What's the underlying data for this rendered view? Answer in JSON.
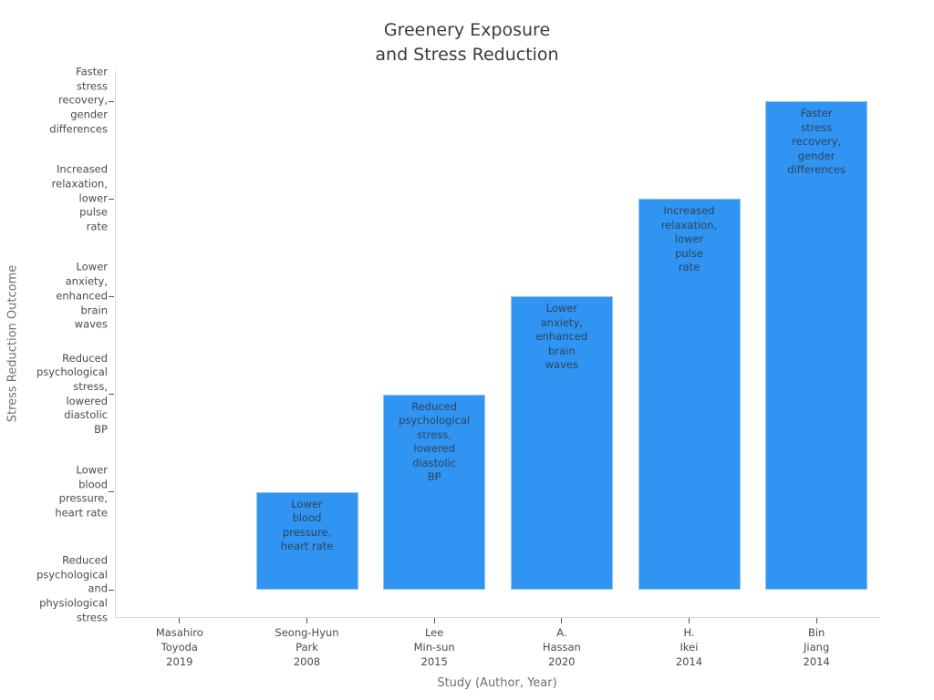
{
  "chart_data": {
    "type": "bar",
    "title": "Greenery Exposure and Stress Reduction",
    "title_lines": [
      "Greenery Exposure",
      "and Stress Reduction"
    ],
    "xlabel": "Study (Author, Year)",
    "ylabel": "Stress Reduction Outcome",
    "categories": [
      "Masahiro Toyoda 2019",
      "Seong-Hyun Park 2008",
      "Lee Min-sun 2015",
      "A. Hassan 2020",
      "H. Ikei 2014",
      "Bin Jiang 2014"
    ],
    "x_tick_lines": [
      [
        "Masahiro",
        "Toyoda",
        "2019"
      ],
      [
        "Seong-Hyun",
        "Park",
        "2008"
      ],
      [
        "Lee",
        "Min-sun",
        "2015"
      ],
      [
        "A.",
        "Hassan",
        "2020"
      ],
      [
        "H.",
        "Ikei",
        "2014"
      ],
      [
        "Bin",
        "Jiang",
        "2014"
      ]
    ],
    "values": [
      0,
      1,
      2,
      3,
      4,
      5
    ],
    "points": [
      {
        "study": "Masahiro Toyoda 2019",
        "outcome": "Reduced psychological and physiological stress",
        "value": 0
      },
      {
        "study": "Seong-Hyun Park 2008",
        "outcome": "Lower blood pressure, heart rate",
        "value": 1
      },
      {
        "study": "Lee Min-sun 2015",
        "outcome": "Reduced psychological stress, lowered diastolic BP",
        "value": 2
      },
      {
        "study": "A. Hassan 2020",
        "outcome": "Lower anxiety, enhanced brain waves",
        "value": 3
      },
      {
        "study": "H. Ikei 2014",
        "outcome": "Increased relaxation, lower pulse rate",
        "value": 4
      },
      {
        "study": "Bin Jiang 2014",
        "outcome": "Faster stress recovery, gender differences",
        "value": 5
      }
    ],
    "y_tick_values": [
      0,
      1,
      2,
      3,
      4,
      5
    ],
    "y_tick_lines": [
      [
        "Reduced",
        "psychological",
        "and",
        "physiological",
        "stress"
      ],
      [
        "Lower",
        "blood",
        "pressure,",
        "heart rate"
      ],
      [
        "Reduced",
        "psychological",
        "stress,",
        "lowered",
        "diastolic",
        "BP"
      ],
      [
        "Lower",
        "anxiety,",
        "enhanced",
        "brain",
        "waves"
      ],
      [
        "Increased",
        "relaxation,",
        "lower",
        "pulse",
        "rate"
      ],
      [
        "Faster",
        "stress",
        "recovery,",
        "gender",
        "differences"
      ]
    ],
    "bar_label_lines": [
      [],
      [
        "Lower",
        "blood",
        "pressure,",
        "heart rate"
      ],
      [
        "Reduced",
        "psychological",
        "stress,",
        "lowered",
        "diastolic",
        "BP"
      ],
      [
        "Lower",
        "anxiety,",
        "enhanced",
        "brain",
        "waves"
      ],
      [
        "Increased",
        "relaxation,",
        "lower",
        "pulse",
        "rate"
      ],
      [
        "Faster",
        "stress",
        "recovery,",
        "gender",
        "differences"
      ]
    ],
    "ylim": [
      -0.28,
      5.31
    ],
    "grid": false,
    "legend": null,
    "colors": {
      "bar": "#3094f3",
      "bar_label": "#2f4358",
      "tick_label": "#4a4a4a",
      "tick_mark": "#555555",
      "axis_line": "#d9d9d9",
      "axis_title": "#6f6f6f",
      "title": "#3c3c3c",
      "background": "#ffffff"
    }
  }
}
